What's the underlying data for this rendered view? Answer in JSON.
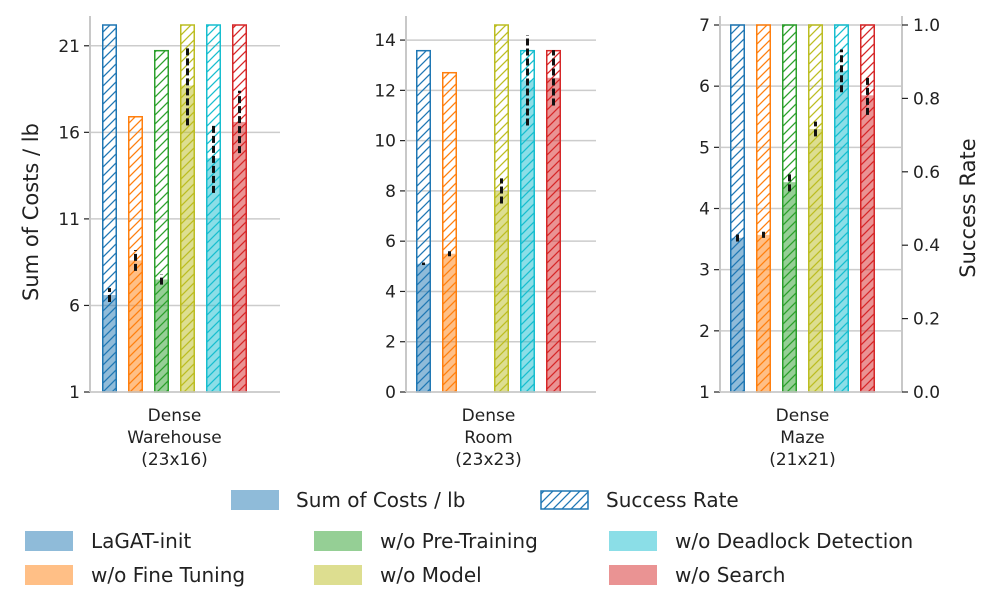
{
  "chart_data": {
    "type": "bar",
    "ylabel_left": "Sum of Costs / lb",
    "ylabel_right": "Success Rate",
    "legend_kind": [
      {
        "label": "Sum of Costs / lb",
        "style": "solid"
      },
      {
        "label": "Success Rate",
        "style": "hatched"
      }
    ],
    "methods": [
      {
        "name": "LaGAT-init",
        "color": "#1f77b4"
      },
      {
        "name": "w/o Fine Tuning",
        "color": "#ff7f0e"
      },
      {
        "name": "w/o Pre-Training",
        "color": "#2ca02c"
      },
      {
        "name": "w/o Model",
        "color": "#bcbd22"
      },
      {
        "name": "w/o Deadlock Detection",
        "color": "#17becf"
      },
      {
        "name": "w/o Search",
        "color": "#d62728"
      }
    ],
    "panels": [
      {
        "label": [
          "Dense",
          "Warehouse",
          "(23x16)"
        ],
        "ylim": [
          1,
          22.2
        ],
        "yticks": [
          1,
          6,
          11,
          16,
          21
        ],
        "costs": [
          6.6,
          8.6,
          7.5,
          18.7,
          14.5,
          16.6
        ],
        "cost_err": [
          0.4,
          0.6,
          0.3,
          2.3,
          2.0,
          1.8
        ],
        "success": [
          1.0,
          0.75,
          0.93,
          1.0,
          1.0,
          1.0
        ]
      },
      {
        "label": [
          "Dense",
          "Room",
          "(23x23)"
        ],
        "ylim": [
          0,
          14.6
        ],
        "yticks": [
          0,
          2,
          4,
          6,
          8,
          10,
          12,
          14
        ],
        "costs": [
          5.1,
          5.5,
          null,
          8.0,
          12.4,
          12.5
        ],
        "cost_err": [
          0.05,
          0.1,
          null,
          0.5,
          1.8,
          1.1
        ],
        "success": [
          0.93,
          0.87,
          null,
          1.0,
          0.93,
          0.93
        ]
      },
      {
        "label": [
          "Dense",
          "Maze",
          "(21x21)"
        ],
        "ylim": [
          1,
          7
        ],
        "yticks": [
          1,
          2,
          3,
          4,
          5,
          6,
          7
        ],
        "costs": [
          3.52,
          3.57,
          4.43,
          5.3,
          6.25,
          5.85
        ],
        "cost_err": [
          0.06,
          0.05,
          0.15,
          0.12,
          0.35,
          0.32
        ],
        "success": [
          1.0,
          1.0,
          1.0,
          1.0,
          1.0,
          1.0
        ]
      }
    ],
    "right_axis": {
      "ylim": [
        0,
        1.0
      ],
      "ticks": [
        "0.0",
        "0.2",
        "0.4",
        "0.6",
        "0.8",
        "1.0"
      ]
    }
  }
}
